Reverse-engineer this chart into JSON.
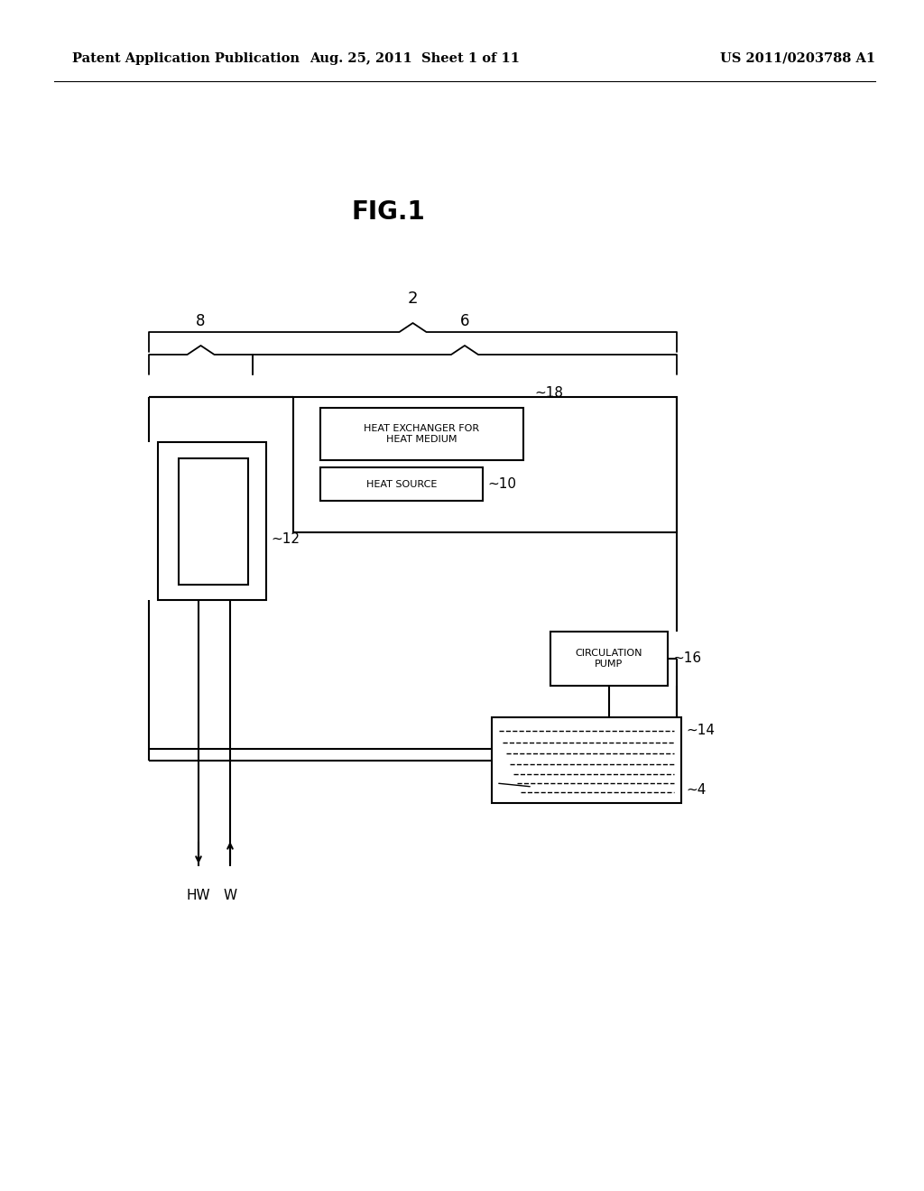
{
  "bg_color": "#ffffff",
  "header_left": "Patent Application Publication",
  "header_mid": "Aug. 25, 2011  Sheet 1 of 11",
  "header_right": "US 2011/0203788 A1",
  "fig_title": "FIG.1",
  "lw": 1.5
}
